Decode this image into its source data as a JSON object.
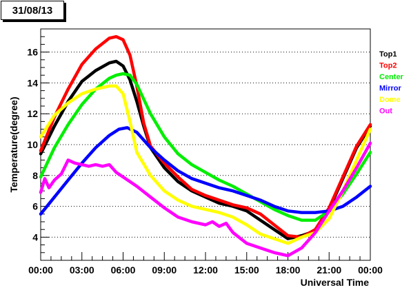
{
  "chart_data": {
    "type": "line",
    "title": "31/08/13",
    "xlabel": "Universal Time",
    "ylabel": "Temperature(degree)",
    "xlim": [
      0,
      24
    ],
    "ylim": [
      2.5,
      17.5
    ],
    "grid": "horizontal-dotted",
    "legend_placement": "right",
    "x_ticks": [
      {
        "value": 0,
        "label": "00:00"
      },
      {
        "value": 3,
        "label": "03:00"
      },
      {
        "value": 6,
        "label": "06:00"
      },
      {
        "value": 9,
        "label": "09:00"
      },
      {
        "value": 12,
        "label": "12:00"
      },
      {
        "value": 15,
        "label": "15:00"
      },
      {
        "value": 18,
        "label": "18:00"
      },
      {
        "value": 21,
        "label": "21:00"
      },
      {
        "value": 24,
        "label": "00:00"
      }
    ],
    "y_ticks": [
      {
        "value": 4,
        "label": "4"
      },
      {
        "value": 6,
        "label": "6"
      },
      {
        "value": 8,
        "label": "8"
      },
      {
        "value": 10,
        "label": "10"
      },
      {
        "value": 12,
        "label": "12"
      },
      {
        "value": 14,
        "label": "14"
      },
      {
        "value": 16,
        "label": "16"
      }
    ],
    "series": [
      {
        "name": "Top1",
        "color": "#000000",
        "points": [
          [
            0,
            9.4
          ],
          [
            1,
            11.2
          ],
          [
            2,
            12.8
          ],
          [
            3,
            14.1
          ],
          [
            4,
            14.8
          ],
          [
            5,
            15.3
          ],
          [
            5.5,
            15.4
          ],
          [
            6,
            15.1
          ],
          [
            6.5,
            14.2
          ],
          [
            7,
            12.8
          ],
          [
            7.5,
            11.2
          ],
          [
            8,
            9.8
          ],
          [
            9,
            8.5
          ],
          [
            10,
            7.6
          ],
          [
            11,
            7.0
          ],
          [
            12,
            6.6
          ],
          [
            13,
            6.2
          ],
          [
            14,
            6.0
          ],
          [
            15,
            5.7
          ],
          [
            16,
            5.1
          ],
          [
            17,
            4.5
          ],
          [
            18,
            3.9
          ],
          [
            18.5,
            4.0
          ],
          [
            19,
            4.1
          ],
          [
            20,
            4.4
          ],
          [
            21,
            5.8
          ],
          [
            22,
            7.8
          ],
          [
            23,
            9.8
          ],
          [
            24,
            11.2
          ]
        ]
      },
      {
        "name": "Top2",
        "color": "#ff0000",
        "points": [
          [
            0,
            9.6
          ],
          [
            1,
            11.8
          ],
          [
            2,
            13.6
          ],
          [
            3,
            15.2
          ],
          [
            4,
            16.2
          ],
          [
            5,
            16.9
          ],
          [
            5.5,
            17.0
          ],
          [
            6,
            16.8
          ],
          [
            6.5,
            15.8
          ],
          [
            7,
            13.8
          ],
          [
            7.5,
            11.4
          ],
          [
            8,
            9.9
          ],
          [
            9,
            8.8
          ],
          [
            10,
            7.9
          ],
          [
            11,
            7.1
          ],
          [
            12,
            6.7
          ],
          [
            13,
            6.4
          ],
          [
            14,
            6.1
          ],
          [
            15,
            5.9
          ],
          [
            16,
            5.5
          ],
          [
            17,
            4.8
          ],
          [
            18,
            4.1
          ],
          [
            19,
            4.0
          ],
          [
            20,
            4.5
          ],
          [
            21,
            5.9
          ],
          [
            22,
            7.9
          ],
          [
            23,
            9.9
          ],
          [
            24,
            11.3
          ]
        ]
      },
      {
        "name": "Center",
        "color": "#00ee00",
        "points": [
          [
            0,
            7.9
          ],
          [
            1,
            9.8
          ],
          [
            2,
            11.3
          ],
          [
            3,
            12.6
          ],
          [
            4,
            13.6
          ],
          [
            5,
            14.3
          ],
          [
            5.5,
            14.5
          ],
          [
            6,
            14.6
          ],
          [
            6.5,
            14.5
          ],
          [
            7,
            13.9
          ],
          [
            8,
            12.0
          ],
          [
            9,
            10.5
          ],
          [
            10,
            9.4
          ],
          [
            11,
            8.7
          ],
          [
            12,
            8.2
          ],
          [
            13,
            7.7
          ],
          [
            14,
            7.3
          ],
          [
            15,
            6.8
          ],
          [
            16,
            6.3
          ],
          [
            17,
            5.8
          ],
          [
            18,
            5.4
          ],
          [
            19,
            5.1
          ],
          [
            20,
            5.1
          ],
          [
            21,
            5.7
          ],
          [
            22,
            6.8
          ],
          [
            23,
            8.1
          ],
          [
            24,
            9.5
          ]
        ]
      },
      {
        "name": "Mirror",
        "color": "#0000ff",
        "points": [
          [
            0,
            5.5
          ],
          [
            1,
            6.6
          ],
          [
            2,
            7.7
          ],
          [
            3,
            8.8
          ],
          [
            4,
            9.8
          ],
          [
            5,
            10.6
          ],
          [
            5.7,
            11.0
          ],
          [
            6.3,
            11.1
          ],
          [
            7,
            10.8
          ],
          [
            8,
            9.8
          ],
          [
            9,
            9.0
          ],
          [
            10,
            8.3
          ],
          [
            11,
            7.8
          ],
          [
            12,
            7.5
          ],
          [
            13,
            7.2
          ],
          [
            14,
            7.0
          ],
          [
            15,
            6.7
          ],
          [
            16,
            6.4
          ],
          [
            17,
            6.0
          ],
          [
            18,
            5.7
          ],
          [
            19,
            5.6
          ],
          [
            20,
            5.6
          ],
          [
            21,
            5.7
          ],
          [
            22,
            6.0
          ],
          [
            23,
            6.6
          ],
          [
            24,
            7.3
          ]
        ]
      },
      {
        "name": "Dome",
        "color": "#ffff00",
        "points": [
          [
            0,
            10.5
          ],
          [
            1,
            11.9
          ],
          [
            2,
            12.7
          ],
          [
            3,
            13.3
          ],
          [
            4,
            13.6
          ],
          [
            5,
            13.8
          ],
          [
            5.5,
            13.8
          ],
          [
            6,
            13.3
          ],
          [
            6.5,
            11.5
          ],
          [
            7,
            9.5
          ],
          [
            8,
            8.0
          ],
          [
            9,
            7.0
          ],
          [
            10,
            6.4
          ],
          [
            11,
            6.0
          ],
          [
            12,
            5.8
          ],
          [
            13,
            5.6
          ],
          [
            14,
            5.3
          ],
          [
            15,
            4.8
          ],
          [
            16,
            4.2
          ],
          [
            17,
            3.9
          ],
          [
            18,
            3.6
          ],
          [
            19,
            4.0
          ],
          [
            20,
            4.3
          ],
          [
            21,
            5.2
          ],
          [
            22,
            7.0
          ],
          [
            23,
            9.0
          ],
          [
            24,
            11.0
          ]
        ]
      },
      {
        "name": "Out",
        "color": "#ff00ff",
        "points": [
          [
            0,
            6.9
          ],
          [
            0.3,
            7.8
          ],
          [
            0.6,
            7.2
          ],
          [
            1,
            7.7
          ],
          [
            1.5,
            8.1
          ],
          [
            2,
            9.0
          ],
          [
            2.5,
            8.8
          ],
          [
            3,
            8.7
          ],
          [
            3.5,
            8.6
          ],
          [
            4,
            8.7
          ],
          [
            4.5,
            8.6
          ],
          [
            5,
            8.7
          ],
          [
            5.5,
            8.2
          ],
          [
            6,
            7.9
          ],
          [
            7,
            7.3
          ],
          [
            8,
            6.6
          ],
          [
            9,
            5.9
          ],
          [
            10,
            5.3
          ],
          [
            11,
            5.0
          ],
          [
            12,
            4.8
          ],
          [
            12.5,
            5.0
          ],
          [
            13,
            4.7
          ],
          [
            13.5,
            4.9
          ],
          [
            14,
            4.3
          ],
          [
            15,
            3.6
          ],
          [
            16,
            3.3
          ],
          [
            17,
            3.0
          ],
          [
            17.5,
            2.9
          ],
          [
            18,
            2.8
          ],
          [
            19,
            3.3
          ],
          [
            20,
            4.3
          ],
          [
            21,
            5.7
          ],
          [
            22,
            7.0
          ],
          [
            23,
            8.5
          ],
          [
            24,
            10.1
          ]
        ]
      }
    ]
  }
}
